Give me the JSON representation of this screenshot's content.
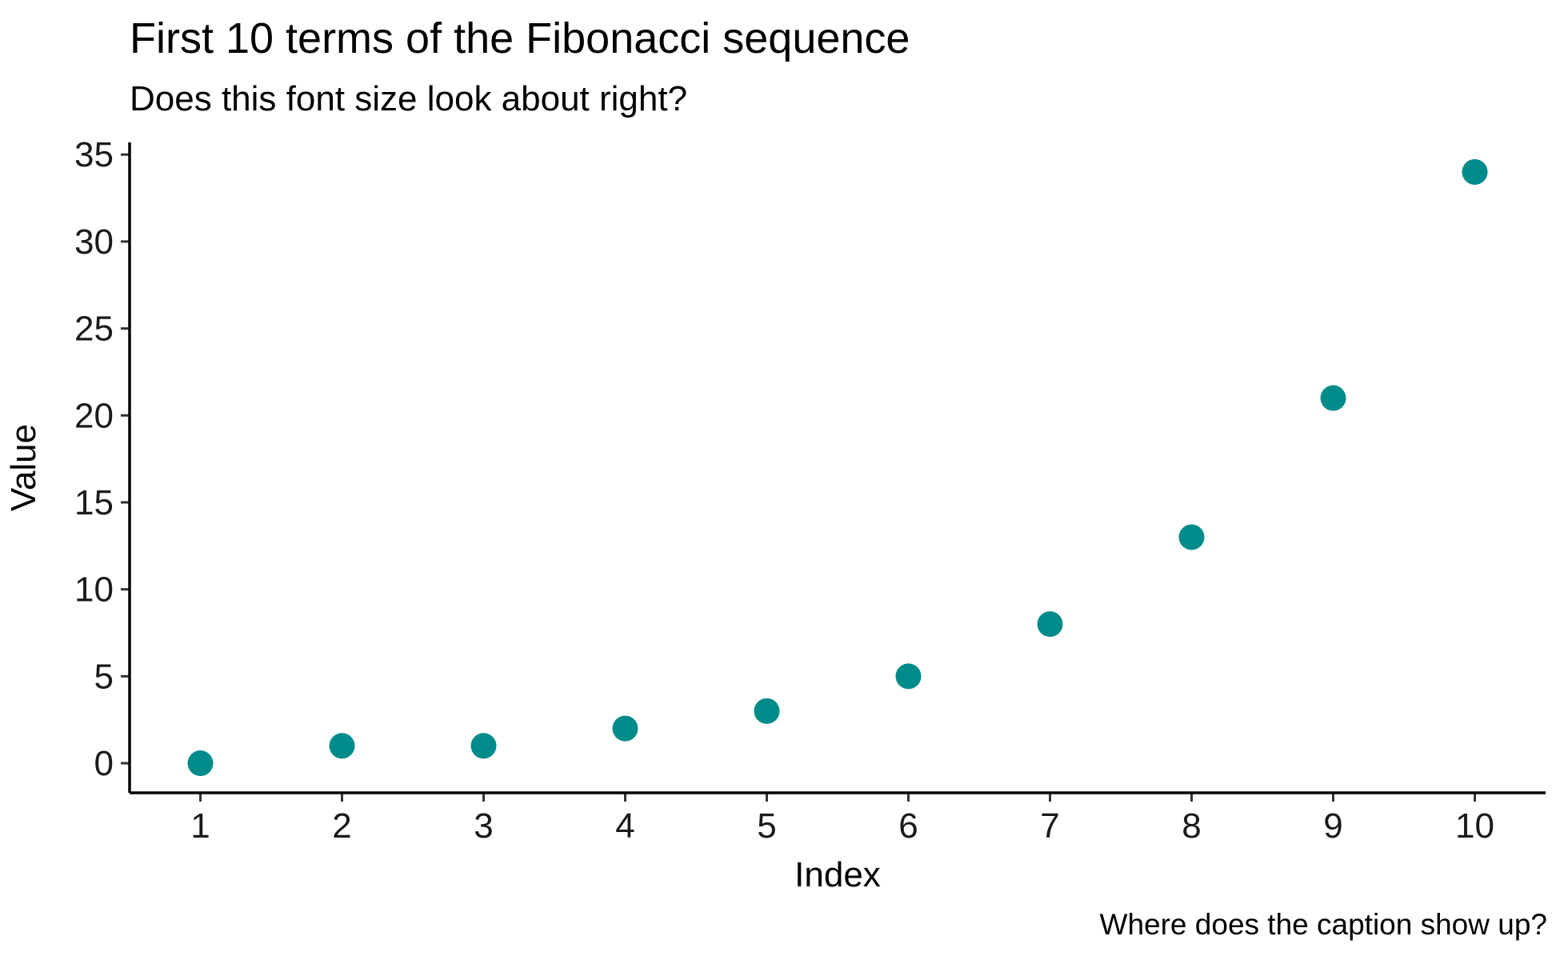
{
  "chart_data": {
    "type": "scatter",
    "title": "First 10 terms of the Fibonacci sequence",
    "subtitle": "Does this font size look about right?",
    "caption": "Where does the caption show up?",
    "xlabel": "Index",
    "ylabel": "Value",
    "x": [
      1,
      2,
      3,
      4,
      5,
      6,
      7,
      8,
      9,
      10
    ],
    "y": [
      0,
      1,
      1,
      2,
      3,
      5,
      8,
      13,
      21,
      34
    ],
    "xticks": [
      "1",
      "2",
      "3",
      "4",
      "5",
      "6",
      "7",
      "8",
      "9",
      "10"
    ],
    "yticks": [
      "0",
      "5",
      "10",
      "15",
      "20",
      "25",
      "30",
      "35"
    ],
    "xlim": [
      0.5,
      10.5
    ],
    "ylim": [
      -1.7,
      35.7
    ],
    "point_color": "#008B8B",
    "grid": false,
    "legend": "none"
  }
}
